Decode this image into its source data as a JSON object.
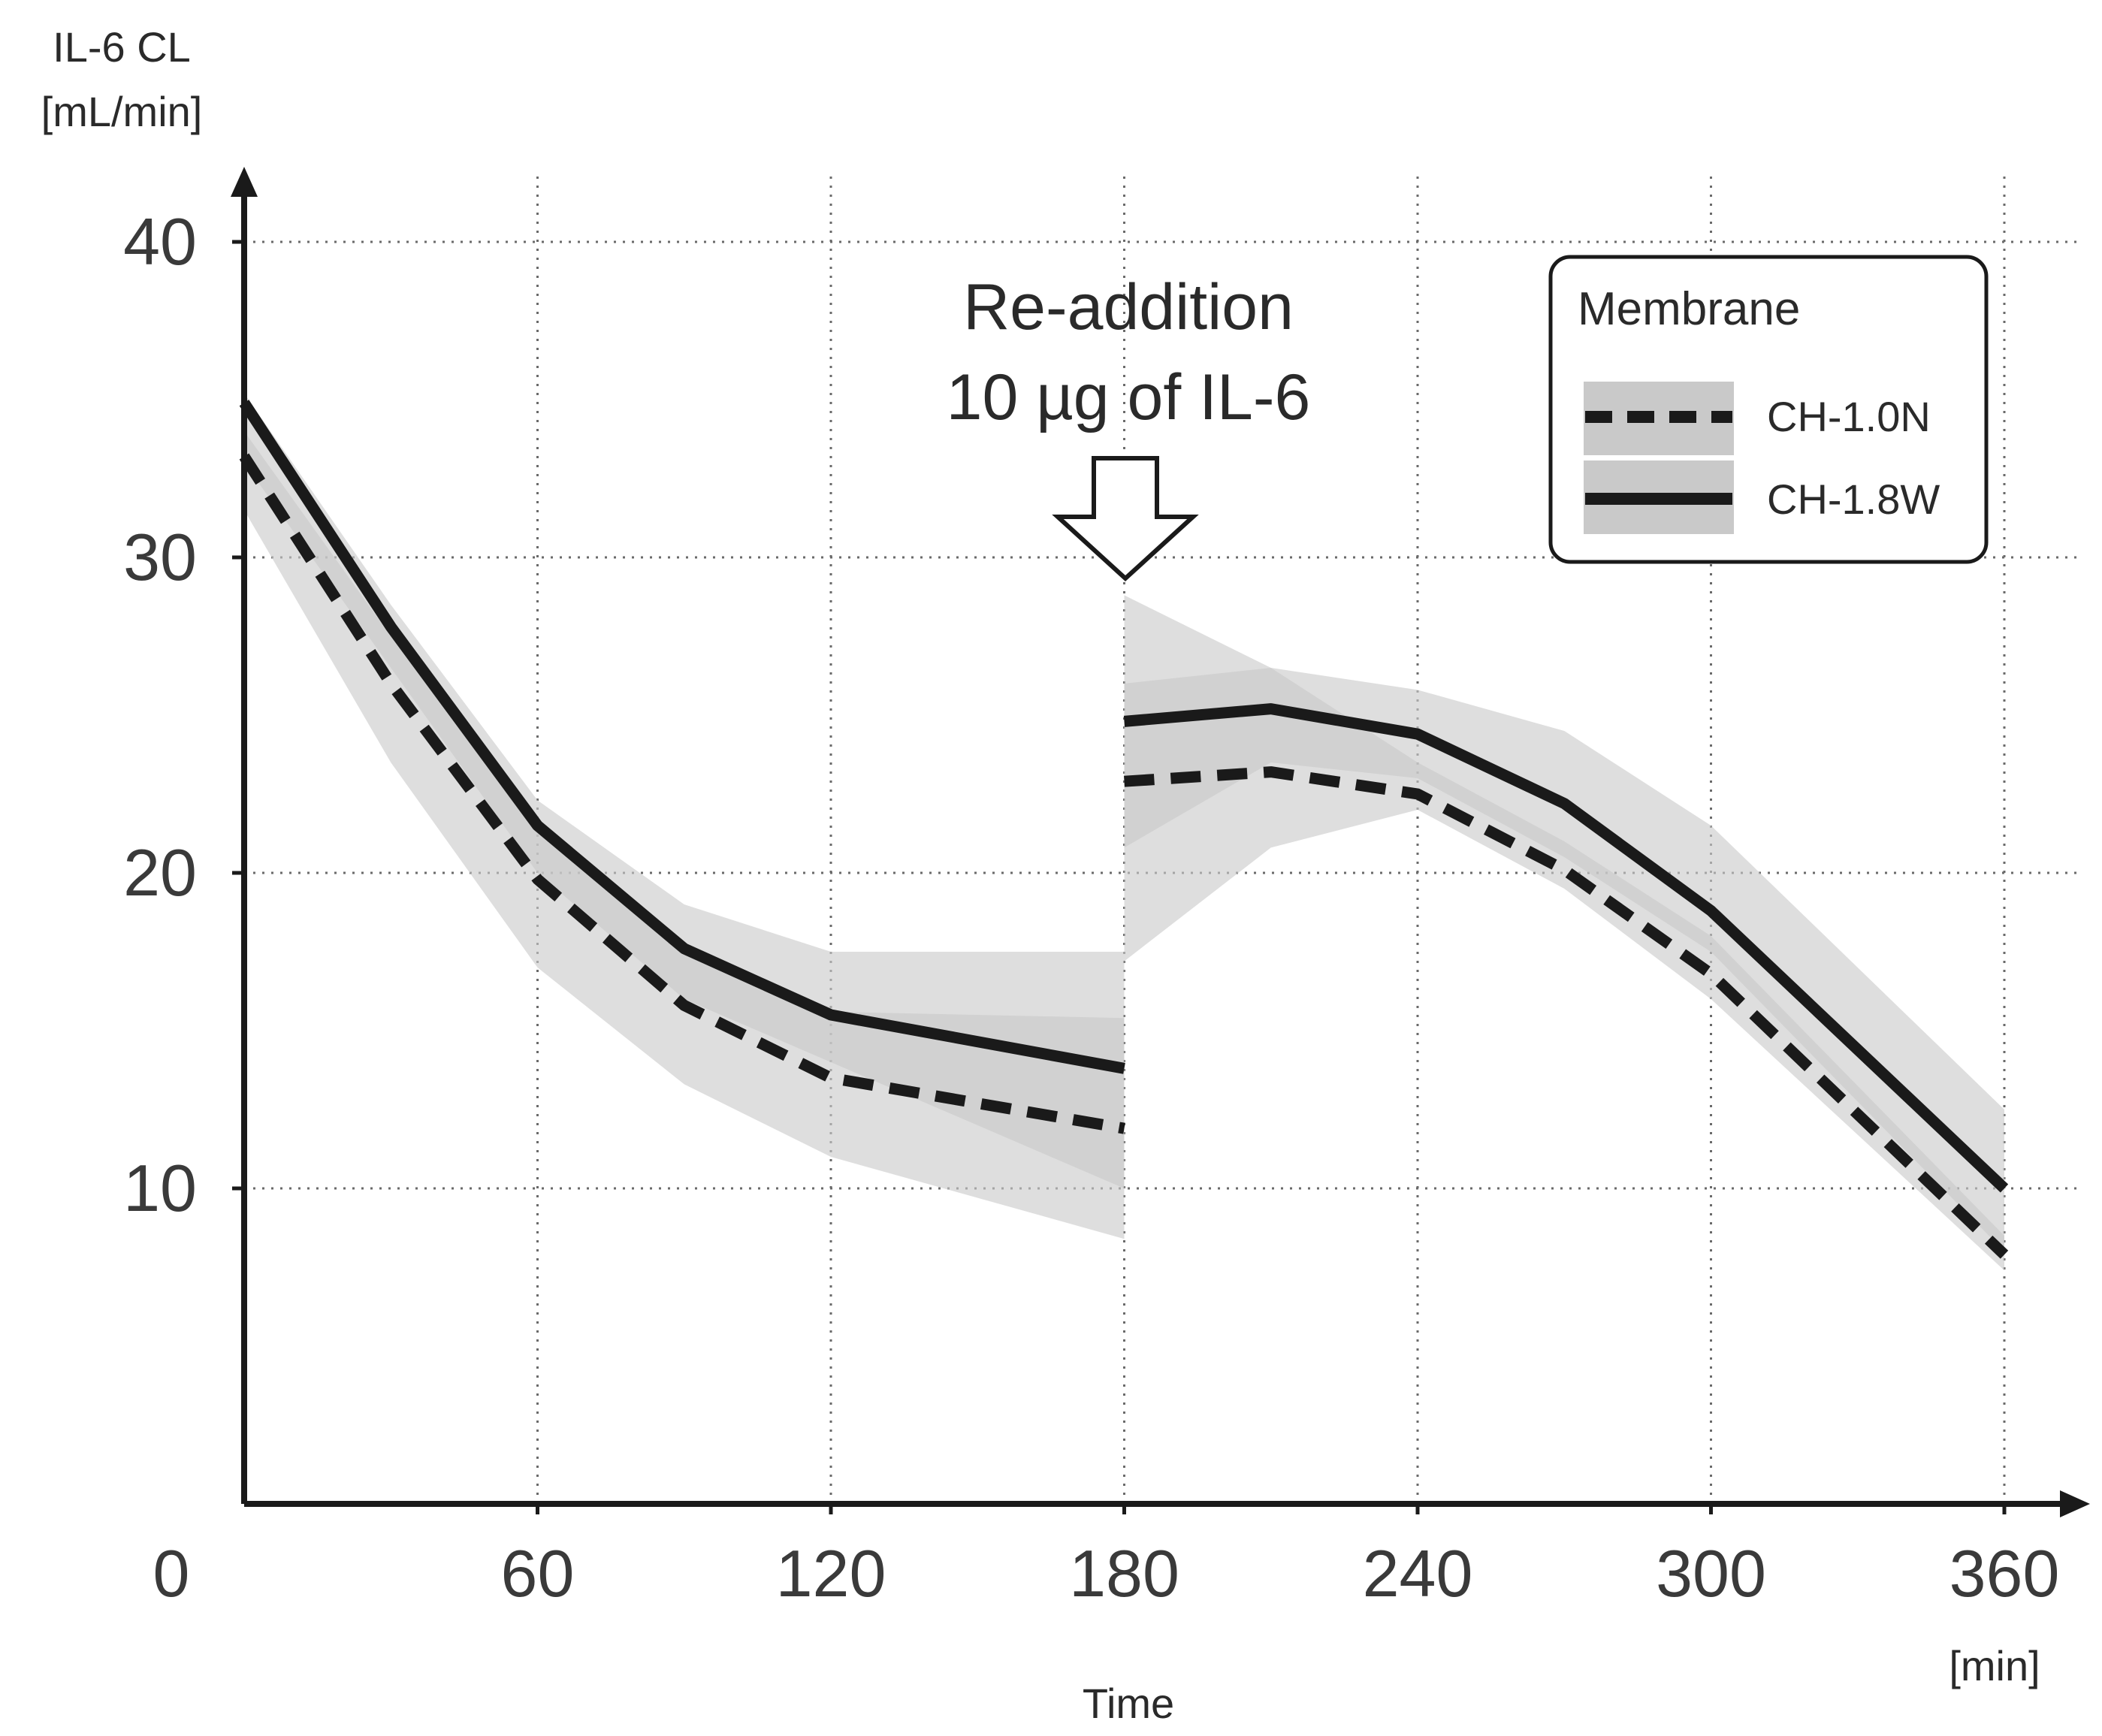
{
  "chart_data": {
    "type": "line",
    "ylabel_line1": "IL-6 CL",
    "ylabel_line2": "[mL/min]",
    "xlabel": "Time",
    "xunit": "[min]",
    "xlim": [
      0,
      360
    ],
    "ylim": [
      0,
      40
    ],
    "x_ticks": [
      0,
      60,
      120,
      180,
      240,
      300,
      360
    ],
    "y_ticks": [
      10,
      20,
      30,
      40
    ],
    "grid": true,
    "annotation": {
      "line1": "Re-addition",
      "line2": "10 µg of IL-6",
      "at_x": 180
    },
    "legend": {
      "title": "Membrane",
      "placement": "top-right"
    },
    "series": [
      {
        "name": "CH-1.0N",
        "style": "dashed",
        "color": "#1a1a1a",
        "band_color": "#c9c9c9",
        "segments": [
          {
            "x": [
              0,
              30,
              60,
              90,
              120,
              180
            ],
            "y": [
              33.2,
              26.0,
              19.8,
              15.8,
              13.5,
              11.9
            ],
            "lower": [
              31.5,
              23.5,
              17.0,
              13.3,
              11.0,
              8.4
            ],
            "upper": [
              34.0,
              27.5,
              21.5,
              17.8,
              15.6,
              15.4
            ]
          },
          {
            "x": [
              180,
              210,
              240,
              270,
              300,
              360
            ],
            "y": [
              22.9,
              23.2,
              22.5,
              20.1,
              16.8,
              7.9
            ],
            "lower": [
              17.2,
              20.8,
              22.0,
              19.5,
              16.0,
              7.4
            ],
            "upper": [
              28.8,
              26.5,
              23.5,
              21.0,
              18.0,
              8.5
            ]
          }
        ]
      },
      {
        "name": "CH-1.8W",
        "style": "solid",
        "color": "#1a1a1a",
        "band_color": "#c9c9c9",
        "segments": [
          {
            "x": [
              0,
              30,
              60,
              90,
              120,
              180
            ],
            "y": [
              34.9,
              27.8,
              21.5,
              17.6,
              15.5,
              13.8
            ],
            "lower": [
              33.0,
              26.5,
              20.0,
              16.0,
              14.0,
              10.0
            ],
            "upper": [
              35.2,
              28.5,
              22.3,
              19.0,
              17.5,
              17.5
            ]
          },
          {
            "x": [
              180,
              210,
              240,
              270,
              300,
              360
            ],
            "y": [
              24.8,
              25.2,
              24.4,
              22.2,
              18.8,
              10.0
            ],
            "lower": [
              20.8,
              23.5,
              23.0,
              20.5,
              17.5,
              8.0
            ],
            "upper": [
              26.0,
              26.5,
              25.8,
              24.5,
              21.5,
              12.5
            ]
          }
        ]
      }
    ]
  }
}
